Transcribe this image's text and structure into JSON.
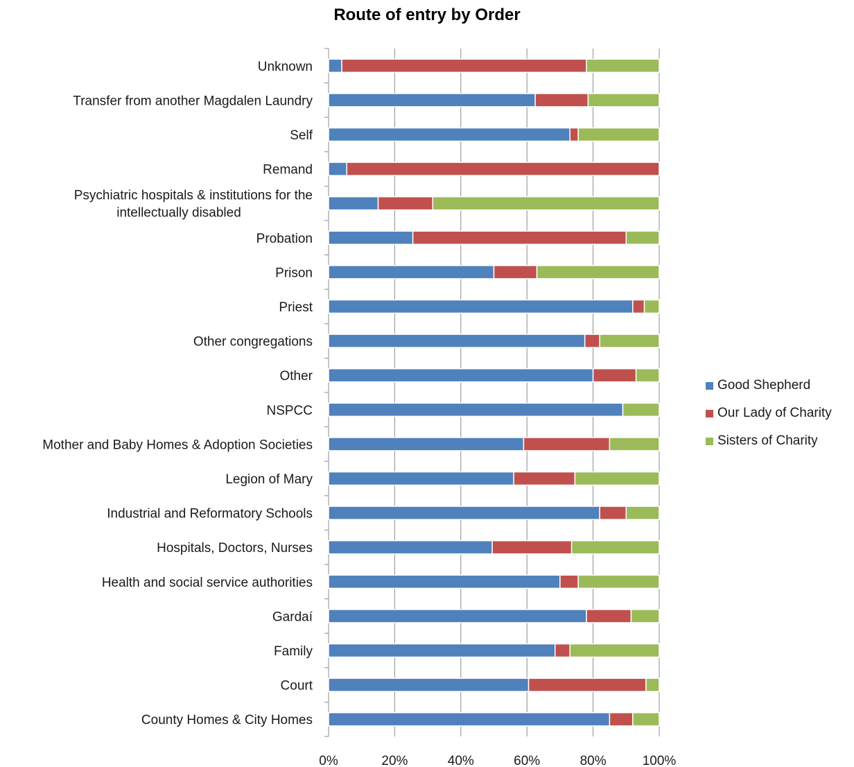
{
  "chart_data": {
    "type": "bar",
    "orientation": "horizontal",
    "stacked": "percent",
    "title": "Route of entry by Order",
    "xlabel": "",
    "ylabel": "",
    "xlim": [
      0,
      100
    ],
    "x_ticks": [
      "0%",
      "20%",
      "40%",
      "60%",
      "80%",
      "100%"
    ],
    "grid": true,
    "legend_position": "right",
    "categories": [
      "Unknown",
      "Transfer from another Magdalen Laundry",
      "Self",
      "Remand",
      "Psychiatric hospitals & institutions for the intellectually disabled",
      "Probation",
      "Prison",
      "Priest",
      "Other congregations",
      "Other",
      "NSPCC",
      "Mother and Baby Homes & Adoption Societies",
      "Legion of Mary",
      "Industrial and Reformatory Schools",
      "Hospitals, Doctors, Nurses",
      "Health and social service authorities",
      "Gardaí",
      "Family",
      "Court",
      "County Homes & City Homes"
    ],
    "category_lines": [
      [
        "Unknown"
      ],
      [
        "Transfer from another Magdalen Laundry"
      ],
      [
        "Self"
      ],
      [
        "Remand"
      ],
      [
        "Psychiatric hospitals & institutions for the",
        "intellectually disabled"
      ],
      [
        "Probation"
      ],
      [
        "Prison"
      ],
      [
        "Priest"
      ],
      [
        "Other congregations"
      ],
      [
        "Other"
      ],
      [
        "NSPCC"
      ],
      [
        "Mother and Baby Homes & Adoption Societies"
      ],
      [
        "Legion of Mary"
      ],
      [
        "Industrial and Reformatory Schools"
      ],
      [
        "Hospitals, Doctors, Nurses"
      ],
      [
        "Health and social service authorities"
      ],
      [
        "Gardaí"
      ],
      [
        "Family"
      ],
      [
        "Court"
      ],
      [
        "County Homes & City Homes"
      ]
    ],
    "series": [
      {
        "name": "Good Shepherd",
        "color": "#4f81bd",
        "values": [
          4,
          62.5,
          73,
          5.5,
          15,
          25.5,
          50,
          92,
          77.5,
          80,
          89,
          59,
          56,
          82,
          49.5,
          70,
          78,
          68.5,
          60.5,
          85
        ]
      },
      {
        "name": "Our Lady of Charity",
        "color": "#c0504d",
        "values": [
          74,
          16,
          2.5,
          94.5,
          16.5,
          64.5,
          13,
          3.5,
          4.5,
          13,
          0,
          26,
          18.5,
          8,
          24,
          5.5,
          13.5,
          4.5,
          35.5,
          7
        ]
      },
      {
        "name": "Sisters of Charity",
        "color": "#9bbb59",
        "values": [
          22,
          21.5,
          24.5,
          0,
          68.5,
          10,
          37,
          4.5,
          18,
          7,
          11,
          15,
          25.5,
          10,
          26.5,
          24.5,
          8.5,
          27,
          4,
          8
        ]
      }
    ]
  }
}
